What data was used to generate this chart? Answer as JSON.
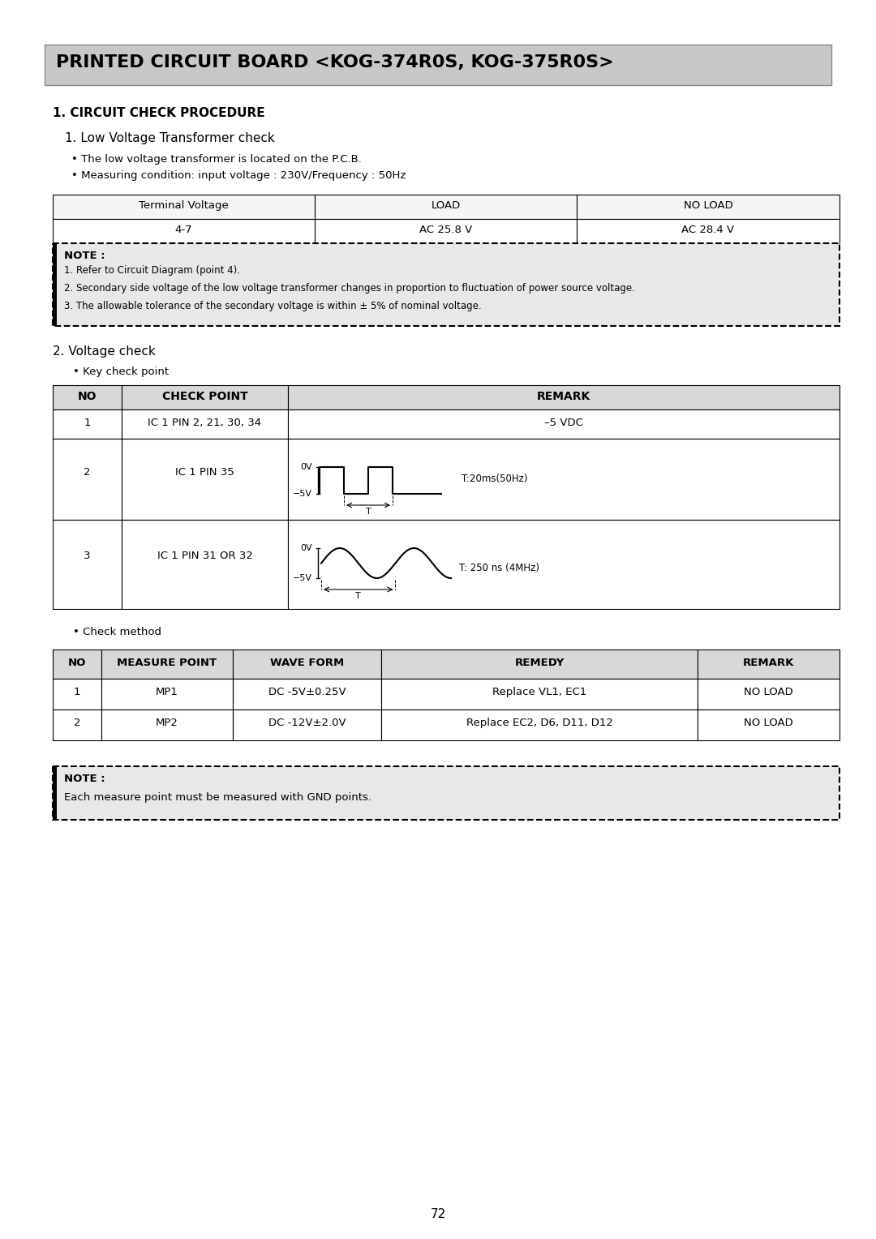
{
  "title": "PRINTED CIRCUIT BOARD <KOG-374R0S, KOG-375R0S>",
  "title_bg": "#c8c8c8",
  "section1": "1. CIRCUIT CHECK PROCEDURE",
  "subsection1": "1. Low Voltage Transformer check",
  "bullet1": "• The low voltage transformer is located on the P.C.B.",
  "bullet2": "• Measuring condition: input voltage : 230V/Frequency : 50Hz",
  "table1_headers": [
    "Terminal Voltage",
    "LOAD",
    "NO LOAD"
  ],
  "table1_row": [
    "4-7",
    "AC 25.8 V",
    "AC 28.4 V"
  ],
  "note1_title": "NOTE :",
  "note1_lines": [
    "1. Refer to Circuit Diagram (point 4).",
    "2. Secondary side voltage of the low voltage transformer changes in proportion to fluctuation of power source voltage.",
    "3. The allowable tolerance of the secondary voltage is within ± 5% of nominal voltage."
  ],
  "subsection2": "2. Voltage check",
  "bullet_key": "• Key check point",
  "table2_headers": [
    "NO",
    "CHECK POINT",
    "REMARK"
  ],
  "table2_row1": [
    "1",
    "IC 1 PIN 2, 21, 30, 34",
    "–5 VDC"
  ],
  "table2_row2_no": "2",
  "table2_row2_cp": "IC 1 PIN 35",
  "table2_row3_no": "3",
  "table2_row3_cp": "IC 1 PIN 31 OR 32",
  "wave2_label": "T:20ms(50Hz)",
  "wave3_label": "T: 250 ns (4MHz)",
  "bullet_check": "• Check method",
  "table3_headers": [
    "NO",
    "MEASURE POINT",
    "WAVE FORM",
    "REMEDY",
    "REMARK"
  ],
  "table3_rows": [
    [
      "1",
      "MP1",
      "DC -5V±0.25V",
      "Replace VL1, EC1",
      "NO LOAD"
    ],
    [
      "2",
      "MP2",
      "DC -12V±2.0V",
      "Replace EC2, D6, D11, D12",
      "NO LOAD"
    ]
  ],
  "note2_title": "NOTE :",
  "note2_line": "Each measure point must be measured with GND points.",
  "page_num": "72",
  "bg_color": "#ffffff",
  "note_bg": "#e8e8e8"
}
